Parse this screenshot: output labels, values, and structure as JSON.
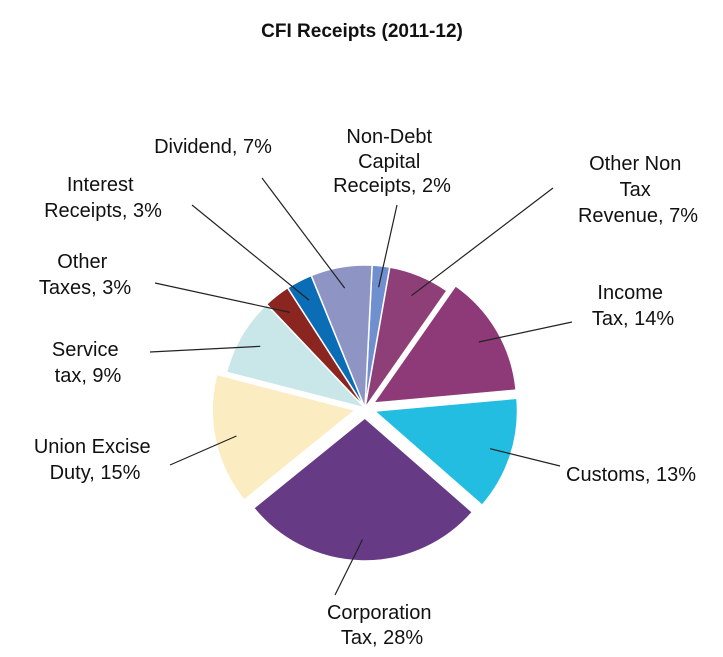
{
  "chart_data": {
    "type": "pie",
    "title": "CFI Receipts (2011-12)",
    "categories": [
      "Non-Debt Capital Receipts, 2%",
      "Other Non Tax Revenue, 7%",
      "Income Tax, 14%",
      "Customs, 13%",
      "Corporation Tax, 28%",
      "Union Excise Duty, 15%",
      "Service tax, 9%",
      "Other Taxes, 3%",
      "Interest Receipts, 3%",
      "Dividend, 7%"
    ],
    "values": [
      2,
      7,
      14,
      13,
      28,
      15,
      9,
      3,
      3,
      7
    ],
    "colors": [
      "#6f8fcf",
      "#8e3f77",
      "#8f3a78",
      "#22bde0",
      "#663a85",
      "#fbedc1",
      "#c9e6e8",
      "#8b2520",
      "#0a6db5",
      "#8e95c4"
    ]
  }
}
